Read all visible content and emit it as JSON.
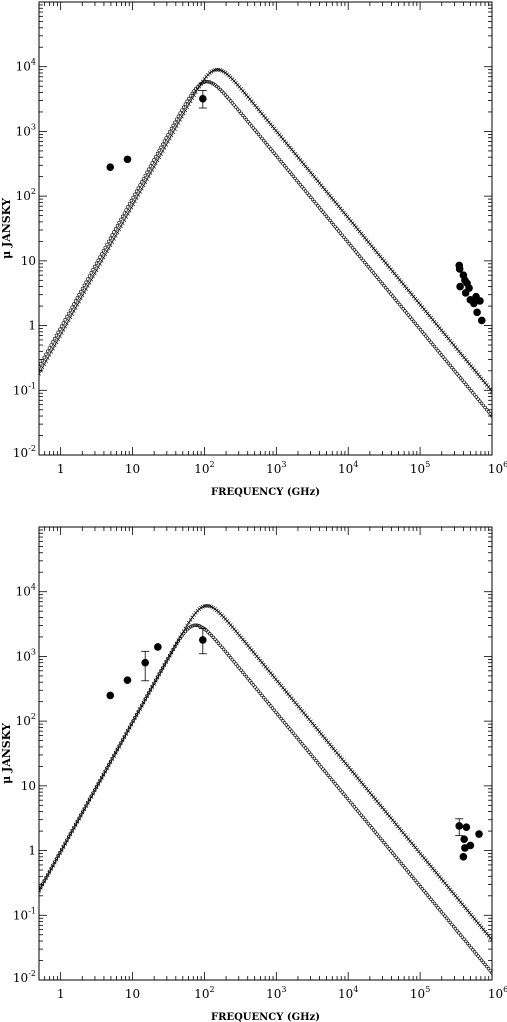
{
  "chart_data": [
    {
      "type": "scatter",
      "title": "",
      "xlabel": "FREQUENCY (GHz)",
      "ylabel": "μ JANSKY",
      "xscale": "log",
      "yscale": "log",
      "xlim": [
        0.5,
        1000000
      ],
      "ylim": [
        0.01,
        100000
      ],
      "grid": false,
      "x_ticks": [
        {
          "value": 1,
          "base": "1",
          "exp": ""
        },
        {
          "value": 10,
          "base": "10",
          "exp": ""
        },
        {
          "value": 100,
          "base": "10",
          "exp": "2"
        },
        {
          "value": 1000,
          "base": "10",
          "exp": "3"
        },
        {
          "value": 10000,
          "base": "10",
          "exp": "4"
        },
        {
          "value": 100000,
          "base": "10",
          "exp": "5"
        },
        {
          "value": 1000000,
          "base": "10",
          "exp": "6"
        }
      ],
      "y_ticks": [
        {
          "value": 0.01,
          "base": "10",
          "exp": "-2"
        },
        {
          "value": 0.1,
          "base": "10",
          "exp": "-1"
        },
        {
          "value": 1,
          "base": "1",
          "exp": ""
        },
        {
          "value": 10,
          "base": "10",
          "exp": ""
        },
        {
          "value": 100,
          "base": "10",
          "exp": "2"
        },
        {
          "value": 1000,
          "base": "10",
          "exp": "3"
        },
        {
          "value": 10000,
          "base": "10",
          "exp": "4"
        }
      ],
      "series": [
        {
          "style": "cross",
          "model": {
            "peak_freq": 140,
            "peak_flux": 8900,
            "low_slope": 2.0,
            "high_slope": -1.34,
            "sharpness": 1.5
          }
        },
        {
          "style": "circle",
          "model": {
            "peak_freq": 100,
            "peak_flux": 5800,
            "low_slope": 2.0,
            "high_slope": -1.34,
            "sharpness": 1.5
          }
        }
      ],
      "observations": [
        {
          "x": 4.9,
          "y": 280
        },
        {
          "x": 8.5,
          "y": 370
        },
        {
          "x": 95,
          "y": 3200,
          "err_low": 2300,
          "err_high": 4300
        },
        {
          "x": 350000,
          "y": 8.5
        },
        {
          "x": 355000,
          "y": 7.5
        },
        {
          "x": 360000,
          "y": 4.0
        },
        {
          "x": 400000,
          "y": 6.0
        },
        {
          "x": 420000,
          "y": 5.0
        },
        {
          "x": 430000,
          "y": 3.2
        },
        {
          "x": 450000,
          "y": 4.5
        },
        {
          "x": 480000,
          "y": 3.8
        },
        {
          "x": 500000,
          "y": 2.5
        },
        {
          "x": 560000,
          "y": 2.2
        },
        {
          "x": 600000,
          "y": 2.8
        },
        {
          "x": 620000,
          "y": 1.6
        },
        {
          "x": 680000,
          "y": 2.4
        },
        {
          "x": 720000,
          "y": 1.2
        }
      ]
    },
    {
      "type": "scatter",
      "title": "",
      "xlabel": "FREQUENCY (GHz)",
      "ylabel": "μ JANSKY",
      "xscale": "log",
      "yscale": "log",
      "xlim": [
        0.5,
        1000000
      ],
      "ylim": [
        0.01,
        100000
      ],
      "grid": false,
      "x_ticks": [
        {
          "value": 1,
          "base": "1",
          "exp": ""
        },
        {
          "value": 10,
          "base": "10",
          "exp": ""
        },
        {
          "value": 100,
          "base": "10",
          "exp": "2"
        },
        {
          "value": 1000,
          "base": "10",
          "exp": "3"
        },
        {
          "value": 10000,
          "base": "10",
          "exp": "4"
        },
        {
          "value": 100000,
          "base": "10",
          "exp": "5"
        },
        {
          "value": 1000000,
          "base": "10",
          "exp": "6"
        }
      ],
      "y_ticks": [
        {
          "value": 0.01,
          "base": "10",
          "exp": "-2"
        },
        {
          "value": 0.1,
          "base": "10",
          "exp": "-1"
        },
        {
          "value": 1,
          "base": "1",
          "exp": ""
        },
        {
          "value": 10,
          "base": "10",
          "exp": ""
        },
        {
          "value": 100,
          "base": "10",
          "exp": "2"
        },
        {
          "value": 1000,
          "base": "10",
          "exp": "3"
        },
        {
          "value": 10000,
          "base": "10",
          "exp": "4"
        }
      ],
      "series": [
        {
          "style": "cross",
          "model": {
            "peak_freq": 100,
            "peak_flux": 6000,
            "low_slope": 2.0,
            "high_slope": -1.34,
            "sharpness": 1.5
          }
        },
        {
          "style": "circle",
          "model": {
            "peak_freq": 70,
            "peak_flux": 3000,
            "low_slope": 2.0,
            "high_slope": -1.34,
            "sharpness": 1.5
          }
        }
      ],
      "observations": [
        {
          "x": 4.9,
          "y": 250
        },
        {
          "x": 8.5,
          "y": 430
        },
        {
          "x": 15,
          "y": 800,
          "err_low": 420,
          "err_high": 1200
        },
        {
          "x": 22.5,
          "y": 1400
        },
        {
          "x": 95,
          "y": 1800,
          "err_low": 1100,
          "err_high": 2700
        },
        {
          "x": 350000,
          "y": 2.4,
          "err_low": 1.7,
          "err_high": 3.1
        },
        {
          "x": 400000,
          "y": 0.8
        },
        {
          "x": 410000,
          "y": 1.5
        },
        {
          "x": 420000,
          "y": 1.1
        },
        {
          "x": 440000,
          "y": 2.3
        },
        {
          "x": 500000,
          "y": 1.2
        },
        {
          "x": 660000,
          "y": 1.8
        }
      ]
    }
  ]
}
